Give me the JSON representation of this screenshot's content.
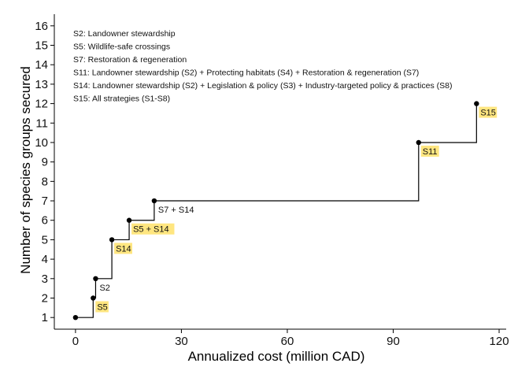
{
  "chart_data": {
    "type": "line",
    "subtype": "step",
    "title": "",
    "xlabel": "Annualized cost (million CAD)",
    "ylabel": "Number of species groups secured",
    "xlim": [
      -6,
      122
    ],
    "ylim": [
      0.4,
      16.6
    ],
    "xticks": [
      0,
      30,
      60,
      90,
      120
    ],
    "yticks": [
      1,
      2,
      3,
      4,
      5,
      6,
      7,
      8,
      9,
      10,
      11,
      12,
      13,
      14,
      15,
      16
    ],
    "grid": false,
    "legend_position": "top-left",
    "legend": [
      "S2: Landowner stewardship",
      "S5: Wildlife-safe crossings",
      "S7: Restoration & regeneration",
      "S11: Landowner stewardship (S2) + Protecting habitats (S4) + Restoration & regeneration (S7)",
      "S14: Landowner stewardship (S2) + Legislation & policy (S3) + Industry-targeted policy & practices (S8)",
      "S15: All strategies (S1-S8)"
    ],
    "points": [
      {
        "x": 0,
        "y": 1,
        "label": "",
        "highlight": false
      },
      {
        "x": 5,
        "y": 2,
        "label": "S5",
        "highlight": true
      },
      {
        "x": 5.7,
        "y": 3,
        "label": "S2",
        "highlight": false
      },
      {
        "x": 10.3,
        "y": 5,
        "label": "S14",
        "highlight": true
      },
      {
        "x": 15.2,
        "y": 6,
        "label": "S5 + S14",
        "highlight": true
      },
      {
        "x": 22.3,
        "y": 7,
        "label": "S7 + S14",
        "highlight": false
      },
      {
        "x": 97.2,
        "y": 10,
        "label": "S11",
        "highlight": true
      },
      {
        "x": 113.6,
        "y": 12,
        "label": "S15",
        "highlight": true
      }
    ],
    "colors": {
      "line": "#000000",
      "highlight": "#ffe680"
    }
  }
}
